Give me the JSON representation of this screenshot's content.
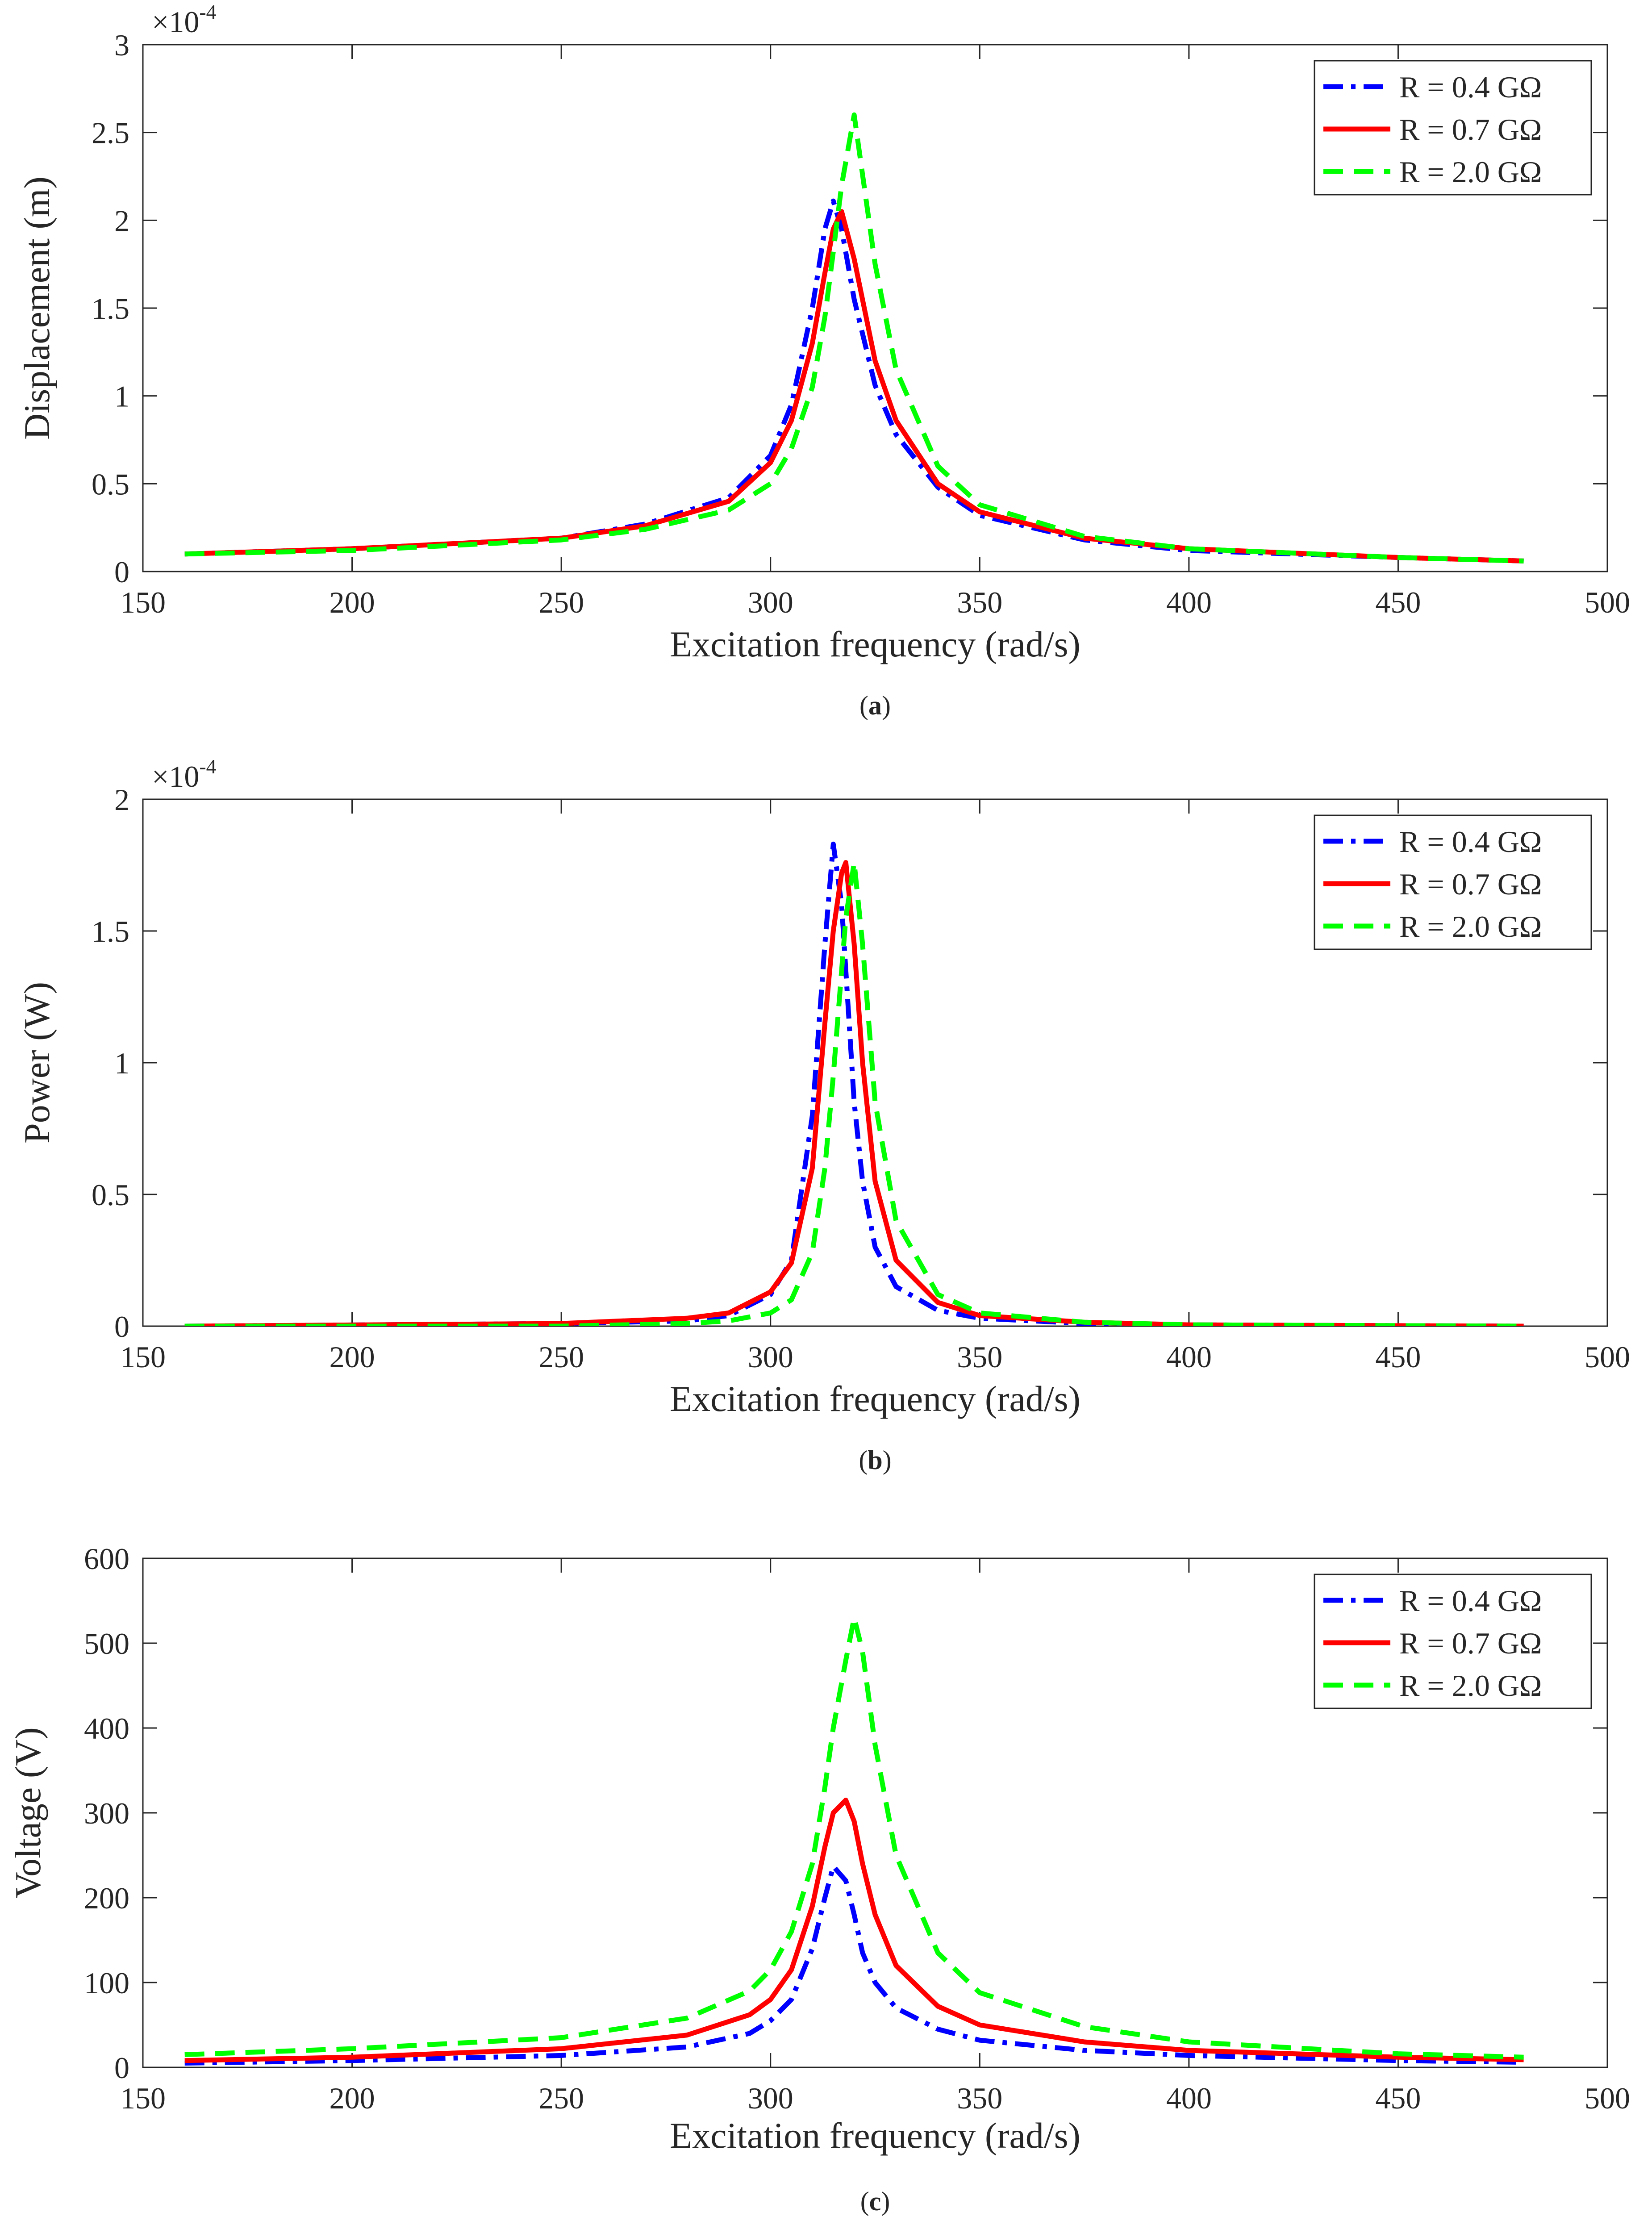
{
  "colors": {
    "blue": "#0000ff",
    "red": "#ff0000",
    "green": "#00ff00",
    "axis": "#262626",
    "tick_text": "#262626"
  },
  "legend_labels": [
    "R = 0.4 GΩ",
    "R = 0.7 GΩ",
    "R = 2.0 GΩ"
  ],
  "chart_data": [
    {
      "type": "line",
      "caption_letter": "a",
      "xlabel": "Excitation frequency (rad/s)",
      "ylabel": "Displacement (m)",
      "exponent_base": "×10",
      "exponent_power": "-4",
      "xlim": [
        150,
        500
      ],
      "ylim": [
        0,
        3
      ],
      "xticks": [
        150,
        200,
        250,
        300,
        350,
        400,
        450,
        500
      ],
      "xtick_labels": [
        "150",
        "200",
        "250",
        "300",
        "350",
        "400",
        "450",
        "500"
      ],
      "yticks": [
        0,
        0.5,
        1,
        1.5,
        2,
        2.5,
        3
      ],
      "ytick_labels": [
        "0",
        "0.5",
        "1",
        "1.5",
        "2",
        "2.5",
        "3"
      ],
      "legend_position": "top-right",
      "x": [
        160,
        200,
        250,
        270,
        290,
        300,
        305,
        310,
        313,
        315,
        317,
        320,
        325,
        330,
        340,
        350,
        375,
        400,
        450,
        480
      ],
      "series": [
        {
          "name": "R = 0.4 GΩ",
          "style": "dashdot",
          "values": [
            0.1,
            0.13,
            0.19,
            0.27,
            0.42,
            0.66,
            0.95,
            1.5,
            1.95,
            2.11,
            1.95,
            1.55,
            1.06,
            0.78,
            0.48,
            0.32,
            0.18,
            0.12,
            0.08,
            0.06
          ]
        },
        {
          "name": "R = 0.7 GΩ",
          "style": "solid",
          "values": [
            0.1,
            0.13,
            0.19,
            0.26,
            0.4,
            0.62,
            0.86,
            1.3,
            1.7,
            1.95,
            2.05,
            1.78,
            1.2,
            0.86,
            0.5,
            0.34,
            0.19,
            0.13,
            0.08,
            0.06
          ]
        },
        {
          "name": "R = 2.0 GΩ",
          "style": "dashed",
          "values": [
            0.1,
            0.12,
            0.18,
            0.24,
            0.35,
            0.5,
            0.7,
            1.05,
            1.45,
            1.82,
            2.2,
            2.6,
            1.75,
            1.15,
            0.6,
            0.38,
            0.2,
            0.13,
            0.08,
            0.06
          ]
        }
      ]
    },
    {
      "type": "line",
      "caption_letter": "b",
      "xlabel": "Excitation frequency (rad/s)",
      "ylabel": "Power (W)",
      "exponent_base": "×10",
      "exponent_power": "-4",
      "xlim": [
        150,
        500
      ],
      "ylim": [
        0,
        2
      ],
      "xticks": [
        150,
        200,
        250,
        300,
        350,
        400,
        450,
        500
      ],
      "xtick_labels": [
        "150",
        "200",
        "250",
        "300",
        "350",
        "400",
        "450",
        "500"
      ],
      "yticks": [
        0,
        0.5,
        1,
        1.5,
        2
      ],
      "ytick_labels": [
        "0",
        "0.5",
        "1",
        "1.5",
        "2"
      ],
      "legend_position": "top-right",
      "x": [
        160,
        250,
        280,
        290,
        300,
        305,
        310,
        313,
        315,
        317,
        318,
        320,
        322,
        325,
        330,
        340,
        350,
        375,
        400,
        480
      ],
      "series": [
        {
          "name": "R = 0.4 GΩ",
          "style": "dashdot",
          "values": [
            0.0,
            0.01,
            0.02,
            0.04,
            0.12,
            0.25,
            0.8,
            1.45,
            1.83,
            1.6,
            1.35,
            0.85,
            0.55,
            0.3,
            0.15,
            0.06,
            0.03,
            0.01,
            0.005,
            0.0
          ]
        },
        {
          "name": "R = 0.7 GΩ",
          "style": "solid",
          "values": [
            0.0,
            0.01,
            0.03,
            0.05,
            0.13,
            0.24,
            0.6,
            1.15,
            1.5,
            1.72,
            1.76,
            1.45,
            1.0,
            0.55,
            0.25,
            0.09,
            0.04,
            0.015,
            0.005,
            0.0
          ]
        },
        {
          "name": "R = 2.0 GΩ",
          "style": "dashed",
          "values": [
            0.0,
            0.0,
            0.01,
            0.02,
            0.05,
            0.1,
            0.28,
            0.6,
            0.95,
            1.35,
            1.55,
            1.76,
            1.45,
            0.85,
            0.4,
            0.12,
            0.05,
            0.015,
            0.005,
            0.0
          ]
        }
      ]
    },
    {
      "type": "line",
      "caption_letter": "c",
      "xlabel": "Excitation frequency (rad/s)",
      "ylabel": "Voltage (V)",
      "exponent_base": "",
      "exponent_power": "",
      "xlim": [
        150,
        500
      ],
      "ylim": [
        0,
        600
      ],
      "xticks": [
        150,
        200,
        250,
        300,
        350,
        400,
        450,
        500
      ],
      "xtick_labels": [
        "150",
        "200",
        "250",
        "300",
        "350",
        "400",
        "450",
        "500"
      ],
      "yticks": [
        0,
        100,
        200,
        300,
        400,
        500,
        600
      ],
      "ytick_labels": [
        "0",
        "100",
        "200",
        "300",
        "400",
        "500",
        "600"
      ],
      "legend_position": "top-right",
      "x": [
        160,
        200,
        250,
        280,
        295,
        300,
        305,
        310,
        313,
        315,
        318,
        320,
        322,
        325,
        330,
        340,
        350,
        375,
        400,
        450,
        480
      ],
      "series": [
        {
          "name": "R = 0.4 GΩ",
          "style": "dashdot",
          "values": [
            5,
            8,
            14,
            24,
            40,
            55,
            80,
            140,
            200,
            237,
            220,
            180,
            135,
            100,
            70,
            45,
            32,
            20,
            14,
            8,
            6
          ]
        },
        {
          "name": "R = 0.7 GΩ",
          "style": "solid",
          "values": [
            8,
            12,
            22,
            38,
            62,
            80,
            115,
            190,
            260,
            300,
            315,
            290,
            240,
            180,
            120,
            72,
            50,
            30,
            20,
            12,
            9
          ]
        },
        {
          "name": "R = 2.0 GΩ",
          "style": "dashed",
          "values": [
            15,
            22,
            35,
            58,
            90,
            115,
            160,
            240,
            330,
            400,
            480,
            530,
            490,
            380,
            250,
            135,
            88,
            48,
            30,
            16,
            12
          ]
        }
      ]
    }
  ]
}
